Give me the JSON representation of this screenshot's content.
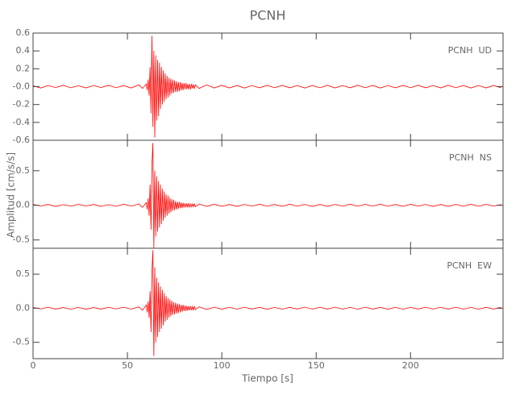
{
  "title": "PCNH",
  "xlabel": "Tiempo [s]",
  "ylabel": "Amplitud [cm/s/s]",
  "chart_data": [
    {
      "type": "line",
      "label": "PCNH  UD",
      "color": "#ff0000",
      "x": [
        0,
        4,
        8,
        12,
        16,
        20,
        24,
        28,
        32,
        36,
        40,
        44,
        48,
        52,
        56,
        58,
        60,
        60.5,
        61,
        61.5,
        62,
        62.5,
        63,
        63.5,
        64,
        64.5,
        65,
        65.5,
        66,
        66.5,
        67,
        67.5,
        68,
        68.5,
        69,
        69.5,
        70,
        70.5,
        71,
        71.5,
        72,
        72.5,
        73,
        73.5,
        74,
        74.5,
        75,
        75.5,
        76,
        76.5,
        77,
        77.5,
        78,
        78.5,
        79,
        79.5,
        80,
        80.5,
        81,
        81.5,
        82,
        82.5,
        83,
        83.5,
        84,
        84.5,
        85,
        85.5,
        86,
        88,
        92,
        96,
        100,
        104,
        108,
        112,
        116,
        120,
        124,
        128,
        132,
        136,
        140,
        144,
        148,
        152,
        156,
        160,
        164,
        168,
        172,
        176,
        180,
        184,
        188,
        192,
        196,
        200,
        204,
        208,
        212,
        216,
        220,
        224,
        228,
        232,
        236,
        240,
        244,
        248
      ],
      "values": [
        0.01,
        -0.015,
        0.012,
        -0.01,
        0.015,
        -0.012,
        0.01,
        -0.014,
        0.012,
        -0.01,
        0.015,
        -0.012,
        0.013,
        -0.015,
        0.02,
        -0.02,
        0.03,
        -0.04,
        0.08,
        -0.1,
        0.22,
        -0.3,
        0.57,
        -0.45,
        0.4,
        -0.57,
        0.35,
        -0.38,
        0.3,
        -0.33,
        0.27,
        -0.25,
        0.22,
        -0.2,
        0.18,
        -0.17,
        0.15,
        -0.14,
        0.12,
        -0.12,
        0.1,
        -0.1,
        0.09,
        -0.08,
        0.08,
        -0.07,
        0.07,
        -0.06,
        0.06,
        -0.06,
        0.05,
        -0.05,
        0.05,
        -0.04,
        0.04,
        -0.04,
        0.04,
        -0.03,
        0.04,
        -0.03,
        0.03,
        -0.03,
        0.03,
        -0.03,
        0.03,
        -0.02,
        0.02,
        -0.02,
        0.02,
        -0.02,
        0.02,
        -0.015,
        0.015,
        -0.014,
        0.013,
        -0.015,
        0.012,
        -0.013,
        0.015,
        -0.012,
        0.014,
        -0.013,
        0.012,
        -0.015,
        0.013,
        -0.012,
        0.015,
        -0.014,
        0.012,
        -0.013,
        0.015,
        -0.012,
        0.014,
        -0.015,
        0.012,
        -0.013,
        0.014,
        -0.012,
        0.015,
        -0.013,
        0.012,
        -0.014,
        0.015,
        -0.012,
        0.013,
        -0.015,
        0.012,
        -0.014,
        0.013,
        -0.012
      ],
      "xlim": [
        0,
        249
      ],
      "xticks": [
        0,
        50,
        100,
        150,
        200
      ],
      "ylim": [
        -0.6,
        0.6
      ],
      "yticks": [
        -0.6,
        -0.4,
        -0.2,
        {
          "value": 0,
          "label": "-0.0"
        },
        0.2,
        0.4,
        0.6
      ]
    },
    {
      "type": "line",
      "label": "PCNH  NS",
      "color": "#ff0000",
      "x": [
        0,
        4,
        8,
        12,
        16,
        20,
        24,
        28,
        32,
        36,
        40,
        44,
        48,
        52,
        56,
        58,
        60,
        60.5,
        61,
        61.5,
        62,
        62.5,
        63,
        63.5,
        64,
        64.5,
        65,
        65.5,
        66,
        66.5,
        67,
        67.5,
        68,
        68.5,
        69,
        69.5,
        70,
        70.5,
        71,
        71.5,
        72,
        72.5,
        73,
        73.5,
        74,
        74.5,
        75,
        75.5,
        76,
        76.5,
        77,
        77.5,
        78,
        78.5,
        79,
        79.5,
        80,
        80.5,
        81,
        81.5,
        82,
        82.5,
        83,
        83.5,
        84,
        84.5,
        85,
        85.5,
        86,
        88,
        92,
        96,
        100,
        104,
        108,
        112,
        116,
        120,
        124,
        128,
        132,
        136,
        140,
        144,
        148,
        152,
        156,
        160,
        164,
        168,
        172,
        176,
        180,
        184,
        188,
        192,
        196,
        200,
        204,
        208,
        212,
        216,
        220,
        224,
        228,
        232,
        236,
        240,
        244,
        248
      ],
      "values": [
        0.015,
        -0.01,
        0.012,
        -0.015,
        0.01,
        -0.012,
        0.014,
        -0.01,
        0.012,
        -0.015,
        0.01,
        -0.013,
        0.015,
        -0.012,
        0.02,
        -0.03,
        0.04,
        -0.06,
        0.1,
        -0.15,
        0.3,
        -0.35,
        0.6,
        0.9,
        -0.62,
        0.5,
        -0.45,
        0.42,
        -0.38,
        0.35,
        -0.32,
        0.3,
        -0.27,
        0.24,
        -0.22,
        0.2,
        -0.18,
        0.16,
        -0.15,
        0.14,
        -0.12,
        0.11,
        -0.1,
        0.09,
        -0.08,
        0.08,
        -0.07,
        0.06,
        -0.06,
        0.05,
        -0.05,
        0.05,
        -0.04,
        0.04,
        -0.04,
        0.035,
        -0.03,
        0.03,
        -0.03,
        0.03,
        -0.025,
        0.025,
        -0.025,
        0.02,
        -0.02,
        0.02,
        -0.02,
        0.02,
        -0.02,
        0.018,
        -0.015,
        0.015,
        -0.014,
        0.012,
        -0.015,
        0.013,
        -0.012,
        0.015,
        -0.013,
        0.012,
        -0.014,
        0.015,
        -0.012,
        0.013,
        -0.015,
        0.012,
        -0.014,
        0.013,
        -0.012,
        0.015,
        -0.013,
        0.014,
        -0.012,
        0.015,
        -0.013,
        0.012,
        -0.014,
        0.015,
        -0.012,
        0.013,
        -0.015,
        0.012,
        -0.014,
        0.013,
        -0.012,
        0.015,
        -0.013,
        0.014,
        -0.012,
        0.013
      ],
      "xlim": [
        0,
        249
      ],
      "xticks": [
        0,
        50,
        100,
        150,
        200
      ],
      "ylim": [
        -0.62,
        0.94
      ],
      "yticks": [
        -0.5,
        {
          "value": 0,
          "label": "0.0"
        },
        0.5
      ]
    },
    {
      "type": "line",
      "label": "PCNH  EW",
      "color": "#ff0000",
      "x": [
        0,
        4,
        8,
        12,
        16,
        20,
        24,
        28,
        32,
        36,
        40,
        44,
        48,
        52,
        56,
        58,
        60,
        60.5,
        61,
        61.5,
        62,
        62.5,
        63,
        63.5,
        64,
        64.5,
        65,
        65.5,
        66,
        66.5,
        67,
        67.5,
        68,
        68.5,
        69,
        69.5,
        70,
        70.5,
        71,
        71.5,
        72,
        72.5,
        73,
        73.5,
        74,
        74.5,
        75,
        75.5,
        76,
        76.5,
        77,
        77.5,
        78,
        78.5,
        79,
        79.5,
        80,
        80.5,
        81,
        81.5,
        82,
        82.5,
        83,
        83.5,
        84,
        84.5,
        85,
        85.5,
        86,
        88,
        92,
        96,
        100,
        104,
        108,
        112,
        116,
        120,
        124,
        128,
        132,
        136,
        140,
        144,
        148,
        152,
        156,
        160,
        164,
        168,
        172,
        176,
        180,
        184,
        188,
        192,
        196,
        200,
        204,
        208,
        212,
        216,
        220,
        224,
        228,
        232,
        236,
        240,
        244,
        248
      ],
      "values": [
        0.012,
        -0.01,
        0.015,
        -0.012,
        0.01,
        -0.014,
        0.012,
        -0.015,
        0.01,
        -0.012,
        0.014,
        -0.01,
        0.015,
        -0.013,
        0.02,
        -0.03,
        0.05,
        -0.06,
        0.1,
        -0.14,
        0.25,
        -0.35,
        0.55,
        0.85,
        -0.7,
        0.6,
        -0.5,
        0.45,
        -0.42,
        0.38,
        -0.35,
        0.32,
        -0.3,
        0.27,
        -0.25,
        0.22,
        -0.2,
        0.18,
        -0.17,
        0.15,
        -0.14,
        0.13,
        -0.12,
        0.11,
        -0.1,
        0.09,
        -0.09,
        0.08,
        -0.08,
        0.07,
        -0.07,
        0.06,
        -0.06,
        0.05,
        -0.05,
        0.05,
        -0.04,
        0.04,
        -0.04,
        0.035,
        -0.035,
        0.03,
        -0.03,
        0.03,
        -0.03,
        0.025,
        -0.025,
        0.025,
        -0.02,
        0.02,
        -0.018,
        0.015,
        -0.015,
        0.014,
        -0.013,
        0.015,
        -0.012,
        0.013,
        -0.015,
        0.012,
        -0.014,
        0.013,
        -0.012,
        0.015,
        -0.013,
        0.014,
        -0.012,
        0.015,
        -0.013,
        0.012,
        -0.014,
        0.015,
        -0.012,
        0.013,
        -0.015,
        0.012,
        -0.014,
        0.013,
        -0.012,
        0.015,
        -0.013,
        0.014,
        -0.012,
        0.015,
        -0.013,
        0.012,
        -0.014,
        0.013,
        -0.012,
        0.015
      ],
      "xlim": [
        0,
        249
      ],
      "xticks": [
        0,
        50,
        100,
        150,
        200
      ],
      "ylim": [
        -0.74,
        0.88
      ],
      "yticks": [
        -0.5,
        {
          "value": 0,
          "label": "0.0"
        },
        0.5
      ]
    }
  ]
}
